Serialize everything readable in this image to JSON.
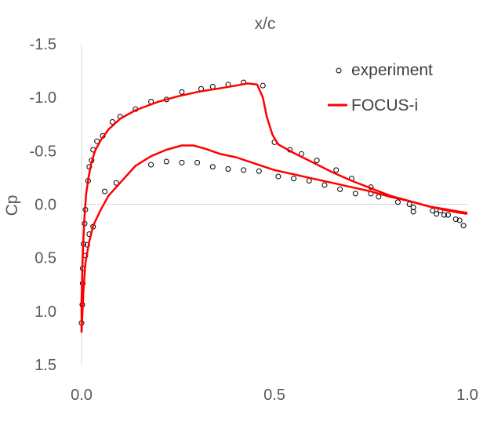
{
  "chart_data": {
    "type": "scatter",
    "title": "",
    "xlabel": "x/c",
    "ylabel": "Cp",
    "xlim": [
      0.0,
      1.0
    ],
    "ylim": [
      -1.5,
      1.5
    ],
    "y_reversed": true,
    "x_ticks": [
      "0.0",
      "0.5",
      "1.0"
    ],
    "y_ticks": [
      "-1.5",
      "-1.0",
      "-0.5",
      "0.0",
      "0.5",
      "1.0",
      "1.5"
    ],
    "x_tick_values": [
      0.0,
      0.5,
      1.0
    ],
    "y_tick_values": [
      -1.5,
      -1.0,
      -0.5,
      0.0,
      0.5,
      1.0,
      1.5
    ],
    "grid": false,
    "legend_position": "top-right",
    "series": [
      {
        "name": "experiment",
        "kind": "markers",
        "color": "#000000",
        "points": [
          [
            0.0,
            1.11
          ],
          [
            0.002,
            0.94
          ],
          [
            0.003,
            0.74
          ],
          [
            0.003,
            0.6
          ],
          [
            0.005,
            0.37
          ],
          [
            0.008,
            0.18
          ],
          [
            0.01,
            0.05
          ],
          [
            0.017,
            -0.22
          ],
          [
            0.02,
            -0.35
          ],
          [
            0.026,
            -0.41
          ],
          [
            0.03,
            -0.51
          ],
          [
            0.04,
            -0.59
          ],
          [
            0.055,
            -0.64
          ],
          [
            0.08,
            -0.77
          ],
          [
            0.1,
            -0.82
          ],
          [
            0.14,
            -0.89
          ],
          [
            0.18,
            -0.96
          ],
          [
            0.22,
            -0.98
          ],
          [
            0.26,
            -1.05
          ],
          [
            0.31,
            -1.08
          ],
          [
            0.34,
            -1.1
          ],
          [
            0.38,
            -1.12
          ],
          [
            0.42,
            -1.14
          ],
          [
            0.47,
            -1.11
          ],
          [
            0.5,
            -0.58
          ],
          [
            0.54,
            -0.51
          ],
          [
            0.57,
            -0.47
          ],
          [
            0.61,
            -0.41
          ],
          [
            0.66,
            -0.32
          ],
          [
            0.7,
            -0.24
          ],
          [
            0.75,
            -0.16
          ],
          [
            0.85,
            0.0
          ],
          [
            0.86,
            0.07
          ],
          [
            0.91,
            0.06
          ],
          [
            0.93,
            0.06
          ],
          [
            0.95,
            0.1
          ],
          [
            0.97,
            0.14
          ],
          [
            0.98,
            0.15
          ],
          [
            0.99,
            0.2
          ],
          [
            0.01,
            0.48
          ],
          [
            0.015,
            0.38
          ],
          [
            0.02,
            0.28
          ],
          [
            0.03,
            0.21
          ],
          [
            0.06,
            -0.12
          ],
          [
            0.09,
            -0.2
          ],
          [
            0.18,
            -0.37
          ],
          [
            0.22,
            -0.4
          ],
          [
            0.26,
            -0.39
          ],
          [
            0.3,
            -0.39
          ],
          [
            0.34,
            -0.35
          ],
          [
            0.38,
            -0.33
          ],
          [
            0.42,
            -0.32
          ],
          [
            0.46,
            -0.31
          ],
          [
            0.51,
            -0.26
          ],
          [
            0.55,
            -0.24
          ],
          [
            0.59,
            -0.22
          ],
          [
            0.63,
            -0.18
          ],
          [
            0.67,
            -0.14
          ],
          [
            0.71,
            -0.1
          ],
          [
            0.75,
            -0.1
          ],
          [
            0.77,
            -0.07
          ],
          [
            0.82,
            -0.02
          ],
          [
            0.86,
            0.03
          ],
          [
            0.92,
            0.09
          ],
          [
            0.94,
            0.1
          ]
        ]
      },
      {
        "name": "FOCUS-i",
        "kind": "line",
        "color": "#ff0000",
        "segments": [
          [
            [
              0.0,
              1.2
            ],
            [
              0.0,
              0.9
            ],
            [
              0.002,
              0.6
            ],
            [
              0.005,
              0.3
            ],
            [
              0.008,
              0.1
            ],
            [
              0.012,
              -0.1
            ],
            [
              0.018,
              -0.25
            ],
            [
              0.025,
              -0.38
            ],
            [
              0.035,
              -0.5
            ],
            [
              0.05,
              -0.6
            ],
            [
              0.07,
              -0.7
            ],
            [
              0.1,
              -0.8
            ],
            [
              0.14,
              -0.88
            ],
            [
              0.2,
              -0.96
            ],
            [
              0.25,
              -1.01
            ],
            [
              0.3,
              -1.05
            ],
            [
              0.35,
              -1.08
            ],
            [
              0.4,
              -1.11
            ],
            [
              0.43,
              -1.13
            ],
            [
              0.455,
              -1.12
            ],
            [
              0.47,
              -1.0
            ],
            [
              0.48,
              -0.82
            ],
            [
              0.495,
              -0.65
            ],
            [
              0.51,
              -0.56
            ],
            [
              0.55,
              -0.48
            ],
            [
              0.6,
              -0.39
            ],
            [
              0.65,
              -0.3
            ],
            [
              0.7,
              -0.22
            ],
            [
              0.75,
              -0.15
            ],
            [
              0.8,
              -0.08
            ],
            [
              0.85,
              -0.03
            ],
            [
              0.9,
              0.02
            ],
            [
              0.95,
              0.06
            ],
            [
              0.98,
              0.08
            ],
            [
              1.0,
              0.09
            ]
          ],
          [
            [
              0.0,
              1.2
            ],
            [
              0.005,
              0.8
            ],
            [
              0.01,
              0.55
            ],
            [
              0.02,
              0.35
            ],
            [
              0.03,
              0.2
            ],
            [
              0.05,
              0.05
            ],
            [
              0.07,
              -0.08
            ],
            [
              0.1,
              -0.2
            ],
            [
              0.14,
              -0.36
            ],
            [
              0.18,
              -0.45
            ],
            [
              0.22,
              -0.51
            ],
            [
              0.26,
              -0.55
            ],
            [
              0.29,
              -0.55
            ],
            [
              0.32,
              -0.52
            ],
            [
              0.36,
              -0.47
            ],
            [
              0.4,
              -0.44
            ],
            [
              0.45,
              -0.38
            ],
            [
              0.5,
              -0.32
            ],
            [
              0.55,
              -0.28
            ],
            [
              0.6,
              -0.24
            ],
            [
              0.65,
              -0.2
            ],
            [
              0.7,
              -0.16
            ],
            [
              0.75,
              -0.12
            ],
            [
              0.8,
              -0.07
            ],
            [
              0.85,
              -0.03
            ],
            [
              0.9,
              0.02
            ],
            [
              0.95,
              0.05
            ],
            [
              0.98,
              0.07
            ],
            [
              1.0,
              0.08
            ]
          ]
        ]
      }
    ]
  }
}
